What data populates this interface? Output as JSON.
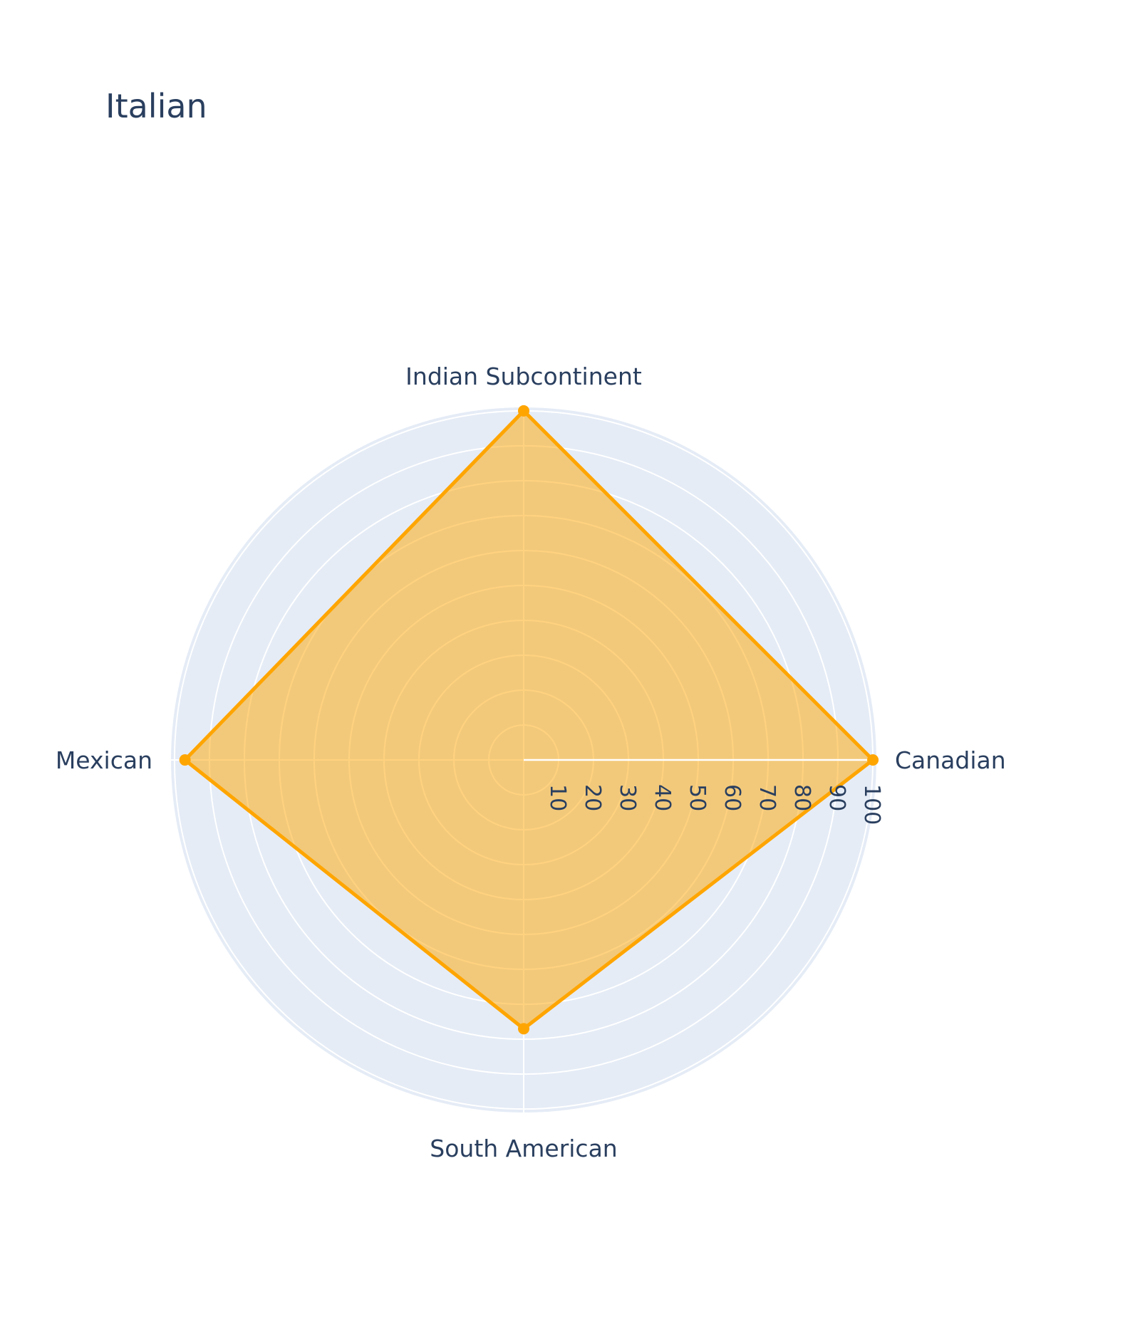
{
  "chart_data": {
    "type": "radar",
    "title": "Italian",
    "categories": [
      "Canadian",
      "Indian Subcontinent",
      "Mexican",
      "South American"
    ],
    "series": [
      {
        "values": [
          100,
          100,
          97,
          77
        ],
        "color": "#FFA500",
        "fill_color": "rgba(255,165,0,0.5)"
      }
    ],
    "radial_range": [
      0,
      101
    ],
    "radial_ticks": [
      10,
      20,
      30,
      40,
      50,
      60,
      70,
      80,
      90,
      100
    ],
    "grid": true,
    "legend": "none"
  },
  "colors": {
    "polar_background": "#E5ECF6",
    "gridline": "#ffffff",
    "text": "#2a3f5f"
  }
}
